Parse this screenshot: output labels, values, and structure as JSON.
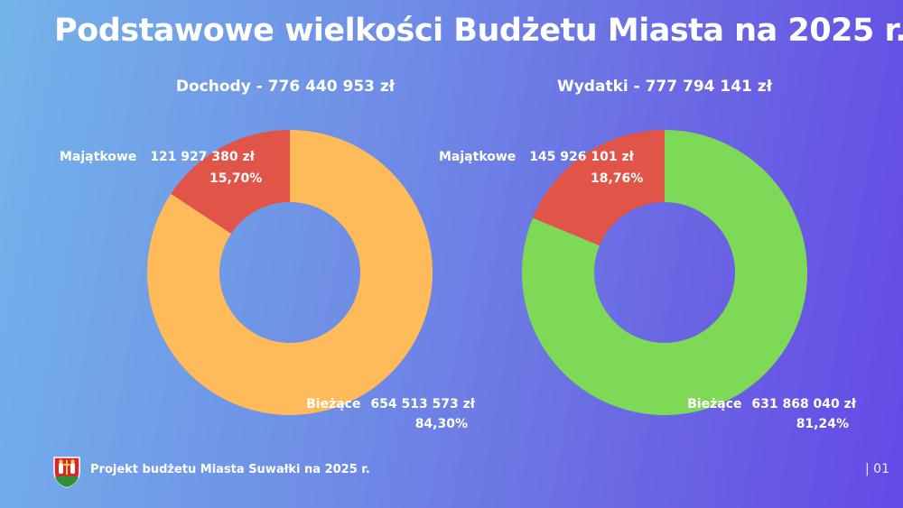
{
  "title": "Podstawowe wielkości Budżetu Miasta na 2025 r.",
  "footer": {
    "text": "Projekt budżetu Miasta Suwałki na 2025 r.",
    "page": "| 01",
    "logo_icon": "suwalki-coat-of-arms-icon"
  },
  "chart_data": [
    {
      "type": "pie",
      "title": "Dochody - 776 440 953 zł",
      "slices": [
        {
          "label": "Majątkowe",
          "amount": "121 927 380 zł",
          "value": 15.7,
          "percent_label": "15,70%",
          "color": "#e05548"
        },
        {
          "label": "Bieżące",
          "amount": "654 513 573 zł",
          "value": 84.3,
          "percent_label": "84,30%",
          "color": "#ffbb59"
        }
      ]
    },
    {
      "type": "pie",
      "title": "Wydatki - 777 794 141 zł",
      "slices": [
        {
          "label": "Majątkowe",
          "amount": "145 926 101 zł",
          "value": 18.76,
          "percent_label": "18,76%",
          "color": "#e05548"
        },
        {
          "label": "Bieżące",
          "amount": "631 868 040 zł",
          "value": 81.24,
          "percent_label": "81,24%",
          "color": "#7ed957"
        }
      ]
    }
  ]
}
